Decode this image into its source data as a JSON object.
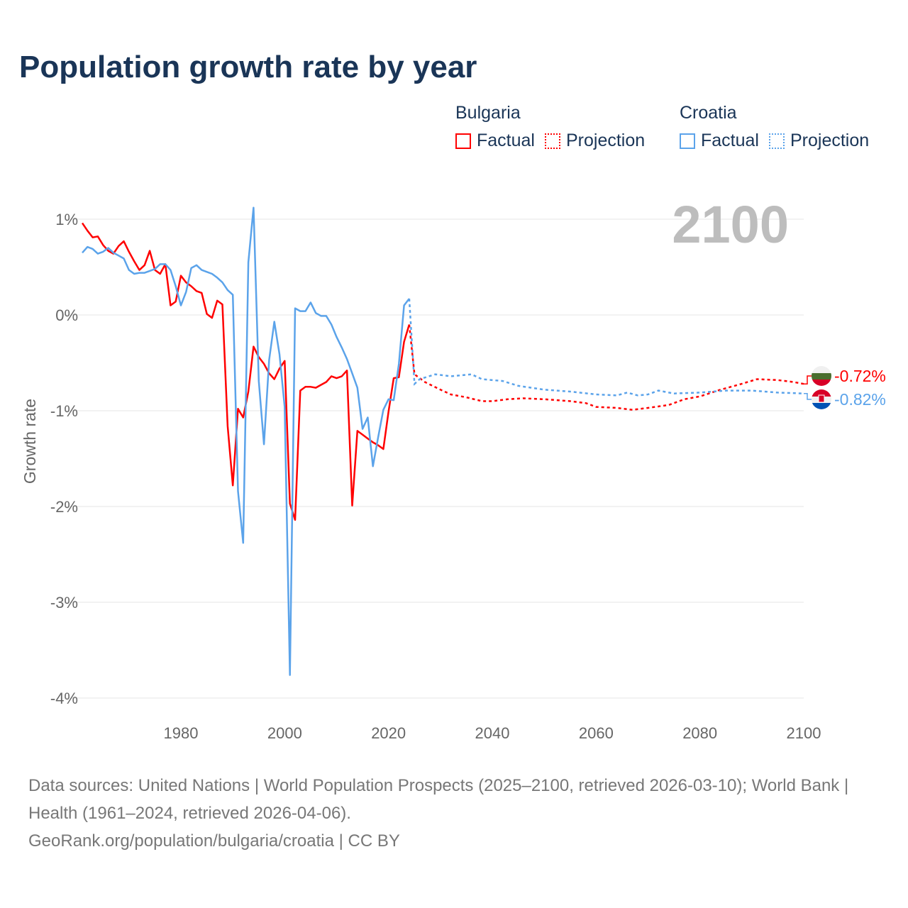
{
  "title": "Population growth rate by year",
  "legend": {
    "groups": [
      {
        "name": "Bulgaria",
        "factual": "Factual",
        "projection": "Projection",
        "color": "#ff0000"
      },
      {
        "name": "Croatia",
        "factual": "Factual",
        "projection": "Projection",
        "color": "#5ba3ea"
      }
    ]
  },
  "footer": {
    "sources": "Data sources: United Nations | World Population Prospects (2025–2100, retrieved 2026-03-10); World Bank | Health (1961–2024, retrieved 2026-04-06).",
    "link": "GeoRank.org/population/bulgaria/croatia | CC BY"
  },
  "chart_data": {
    "type": "line",
    "title": "Population growth rate by year",
    "xlabel": "",
    "ylabel": "Growth rate",
    "year_label": "2100",
    "xlim": [
      1961,
      2100
    ],
    "ylim": [
      -4,
      1
    ],
    "xticks": [
      1980,
      2000,
      2020,
      2040,
      2060,
      2080,
      2100
    ],
    "yticks": [
      {
        "v": 1,
        "label": "1%"
      },
      {
        "v": 0,
        "label": "0%"
      },
      {
        "v": -1,
        "label": "-1%"
      },
      {
        "v": -2,
        "label": "-2%"
      },
      {
        "v": -3,
        "label": "-3%"
      },
      {
        "v": -4,
        "label": "-4%"
      }
    ],
    "grid": true,
    "legend_position": "top-right",
    "series": [
      {
        "name": "Bulgaria",
        "color": "#ff0000",
        "end_label": "-0.72%",
        "factual_start_year": 1961,
        "factual": [
          0.96,
          0.88,
          0.81,
          0.82,
          0.73,
          0.67,
          0.64,
          0.72,
          0.77,
          0.66,
          0.56,
          0.47,
          0.52,
          0.67,
          0.47,
          0.43,
          0.53,
          0.1,
          0.14,
          0.41,
          0.34,
          0.3,
          0.25,
          0.23,
          0.01,
          -0.03,
          0.15,
          0.11,
          -1.16,
          -1.78,
          -0.98,
          -1.07,
          -0.8,
          -0.33,
          -0.44,
          -0.51,
          -0.61,
          -0.67,
          -0.56,
          -0.48,
          -1.97,
          -2.14,
          -0.79,
          -0.75,
          -0.75,
          -0.76,
          -0.73,
          -0.7,
          -0.64,
          -0.66,
          -0.64,
          -0.58,
          -1.99,
          -1.21,
          -1.25,
          -1.29,
          -1.33,
          -1.36,
          -1.4,
          -1.01,
          -0.66,
          -0.65,
          -0.28,
          -0.1
        ],
        "projection": [
          [
            2024,
            -0.1
          ],
          [
            2025,
            -0.62
          ],
          [
            2027,
            -0.7
          ],
          [
            2030,
            -0.78
          ],
          [
            2032,
            -0.83
          ],
          [
            2035,
            -0.86
          ],
          [
            2038,
            -0.9
          ],
          [
            2040,
            -0.9
          ],
          [
            2043,
            -0.88
          ],
          [
            2046,
            -0.87
          ],
          [
            2050,
            -0.88
          ],
          [
            2055,
            -0.9
          ],
          [
            2058,
            -0.92
          ],
          [
            2060,
            -0.96
          ],
          [
            2064,
            -0.97
          ],
          [
            2067,
            -0.99
          ],
          [
            2070,
            -0.97
          ],
          [
            2074,
            -0.94
          ],
          [
            2077,
            -0.88
          ],
          [
            2080,
            -0.85
          ],
          [
            2084,
            -0.78
          ],
          [
            2088,
            -0.72
          ],
          [
            2091,
            -0.67
          ],
          [
            2095,
            -0.68
          ],
          [
            2098,
            -0.7
          ],
          [
            2100,
            -0.72
          ]
        ]
      },
      {
        "name": "Croatia",
        "color": "#5ba3ea",
        "end_label": "-0.82%",
        "factual_start_year": 1961,
        "factual": [
          0.65,
          0.71,
          0.69,
          0.64,
          0.66,
          0.7,
          0.65,
          0.62,
          0.59,
          0.47,
          0.43,
          0.44,
          0.44,
          0.46,
          0.48,
          0.53,
          0.53,
          0.47,
          0.3,
          0.1,
          0.24,
          0.49,
          0.52,
          0.47,
          0.45,
          0.43,
          0.39,
          0.34,
          0.26,
          0.21,
          -1.84,
          -2.38,
          0.55,
          1.12,
          -0.69,
          -1.35,
          -0.47,
          -0.07,
          -0.41,
          -0.96,
          -3.76,
          0.07,
          0.04,
          0.04,
          0.13,
          0.02,
          -0.01,
          -0.01,
          -0.1,
          -0.23,
          -0.34,
          -0.46,
          -0.61,
          -0.76,
          -1.19,
          -1.07,
          -1.58,
          -1.28,
          -0.99,
          -0.88,
          -0.89,
          -0.51,
          0.1,
          0.17
        ],
        "projection": [
          [
            2024,
            0.17
          ],
          [
            2025,
            -0.72
          ],
          [
            2026,
            -0.67
          ],
          [
            2029,
            -0.62
          ],
          [
            2032,
            -0.64
          ],
          [
            2036,
            -0.62
          ],
          [
            2038,
            -0.67
          ],
          [
            2042,
            -0.69
          ],
          [
            2045,
            -0.74
          ],
          [
            2050,
            -0.78
          ],
          [
            2055,
            -0.8
          ],
          [
            2060,
            -0.83
          ],
          [
            2064,
            -0.84
          ],
          [
            2066,
            -0.81
          ],
          [
            2068,
            -0.84
          ],
          [
            2070,
            -0.83
          ],
          [
            2072,
            -0.79
          ],
          [
            2075,
            -0.82
          ],
          [
            2080,
            -0.81
          ],
          [
            2085,
            -0.79
          ],
          [
            2090,
            -0.79
          ],
          [
            2095,
            -0.81
          ],
          [
            2100,
            -0.82
          ]
        ]
      }
    ]
  }
}
